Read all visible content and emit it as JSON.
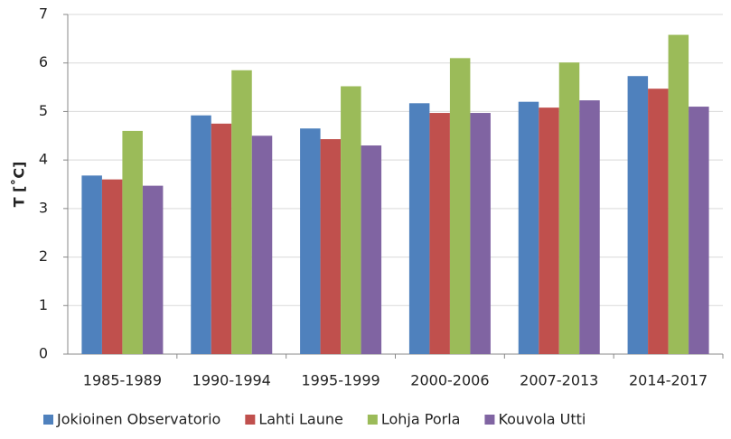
{
  "chart_data": {
    "type": "bar",
    "y_label": "T [˚C]",
    "categories": [
      "1985-1989",
      "1990-1994",
      "1995-1999",
      "2000-2006",
      "2007-2013",
      "2014-2017"
    ],
    "series": [
      {
        "name": "Jokioinen Observatorio",
        "color": "#4f81bd",
        "values": [
          3.68,
          4.92,
          4.65,
          5.17,
          5.2,
          5.73
        ]
      },
      {
        "name": "Lahti Laune",
        "color": "#c0504d",
        "values": [
          3.6,
          4.75,
          4.43,
          4.97,
          5.08,
          5.47
        ]
      },
      {
        "name": "Lohja Porla",
        "color": "#9bbb59",
        "values": [
          4.6,
          5.85,
          5.52,
          6.1,
          6.01,
          6.58
        ]
      },
      {
        "name": "Kouvola Utti",
        "color": "#8064a2",
        "values": [
          3.47,
          4.5,
          4.3,
          4.97,
          5.23,
          5.1
        ]
      }
    ],
    "ylim": [
      0,
      7
    ],
    "yticks": [
      0,
      1,
      2,
      3,
      4,
      5,
      6,
      7
    ],
    "grid": true,
    "legend": "bottom"
  }
}
